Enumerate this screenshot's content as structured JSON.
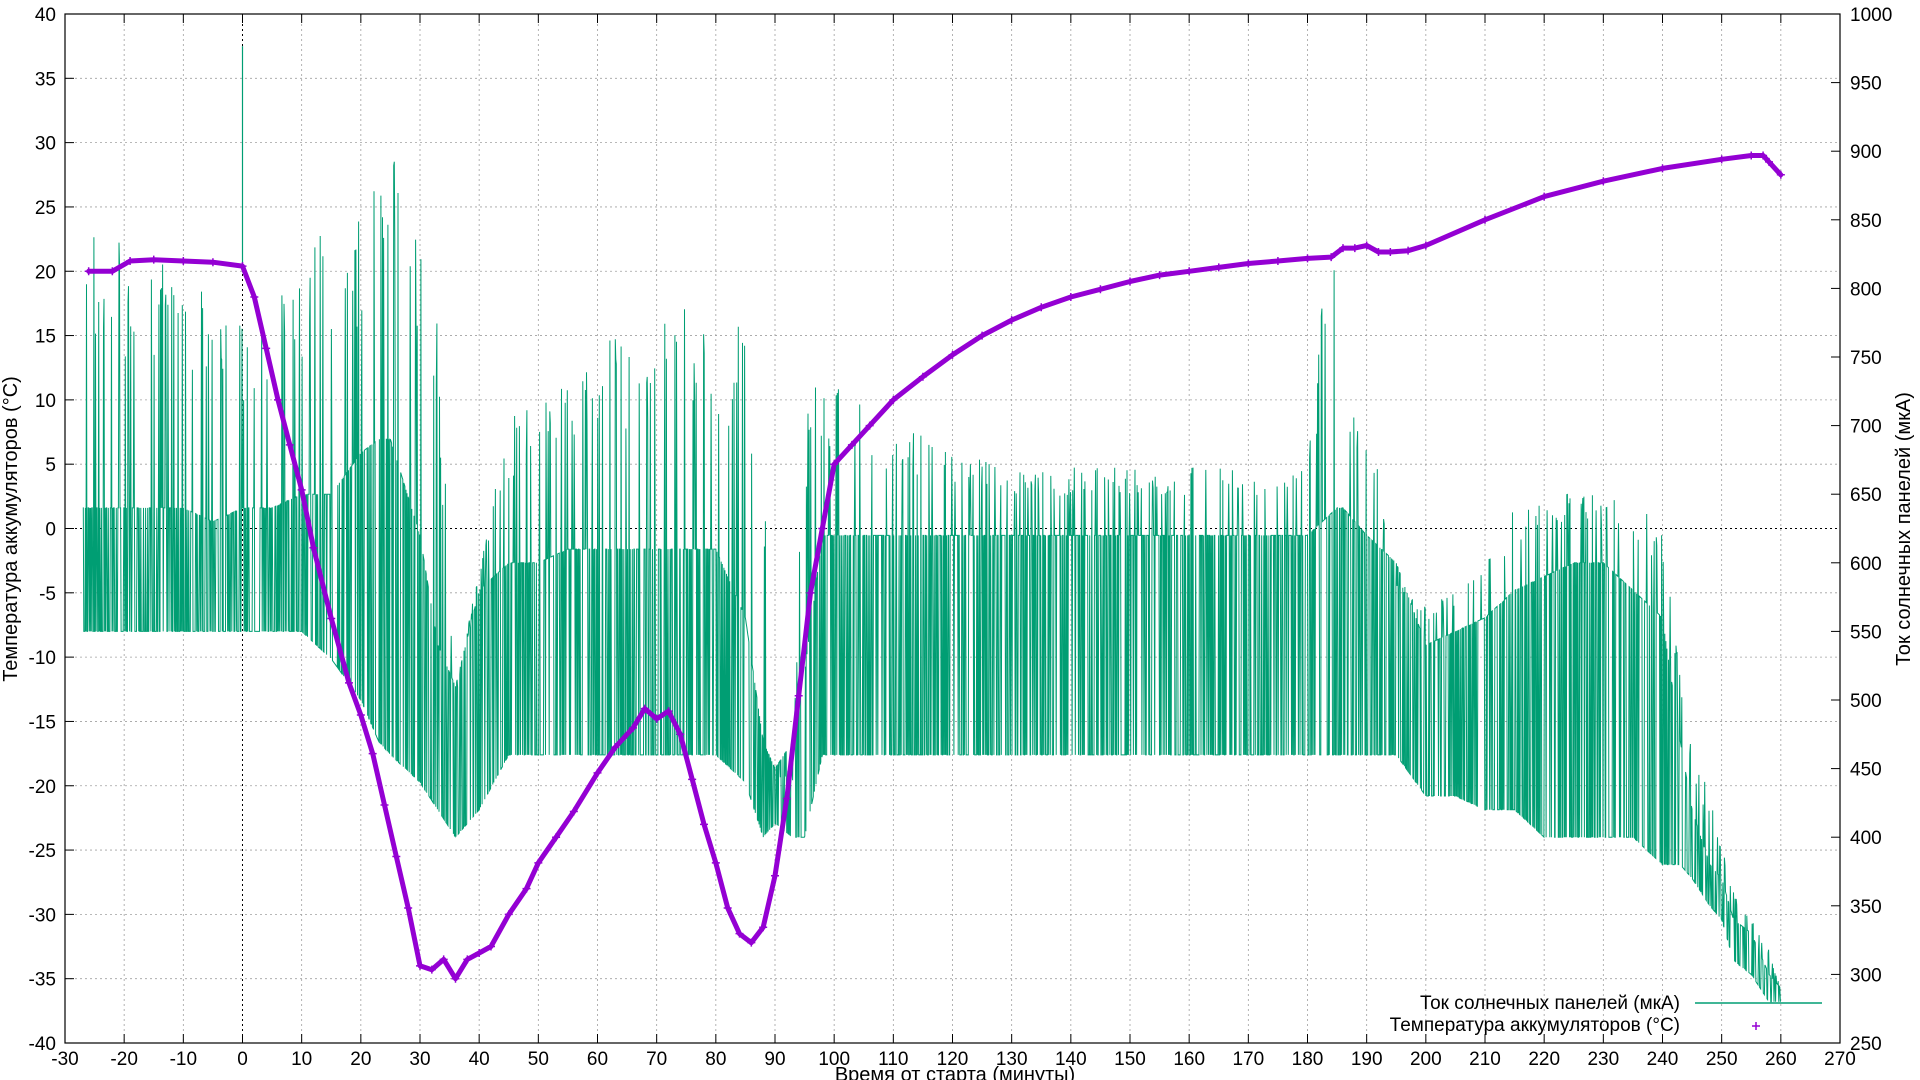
{
  "chart_data": {
    "type": "line",
    "xlabel": "Время от старта (минуты)",
    "ylabel": "Температура аккумуляторов (°C)",
    "y2label": "Ток солнечных панелей (мкА)",
    "xlim": [
      -30,
      270
    ],
    "ylim": [
      -40,
      40
    ],
    "y2lim": [
      250,
      1000
    ],
    "xticks": [
      -30,
      -20,
      -10,
      0,
      10,
      20,
      30,
      40,
      50,
      60,
      70,
      80,
      90,
      100,
      110,
      120,
      130,
      140,
      150,
      160,
      170,
      180,
      190,
      200,
      210,
      220,
      230,
      240,
      250,
      260,
      270
    ],
    "yticks": [
      -40,
      -35,
      -30,
      -25,
      -20,
      -15,
      -10,
      -5,
      0,
      5,
      10,
      15,
      20,
      25,
      30,
      35,
      40
    ],
    "y2ticks": [
      250,
      300,
      350,
      400,
      450,
      500,
      550,
      600,
      650,
      700,
      750,
      800,
      850,
      900,
      950,
      1000
    ],
    "grid": true,
    "legend_position": "bottom-right",
    "colors": {
      "current": "#009e73",
      "temperature": "#9400d3",
      "grid": "#a0a0a0"
    },
    "series": [
      {
        "name": "Ток солнечных панелей (мкА)",
        "axis": "y2",
        "style": "line",
        "x": [
          -27,
          -20,
          -10,
          -5,
          0,
          5,
          10,
          15,
          20,
          23,
          25,
          30,
          33,
          36,
          40,
          45,
          50,
          55,
          60,
          65,
          70,
          75,
          80,
          85,
          88,
          90,
          93,
          95,
          98,
          100,
          105,
          110,
          115,
          120,
          130,
          140,
          150,
          160,
          170,
          180,
          185,
          186,
          190,
          195,
          200,
          205,
          210,
          215,
          220,
          225,
          230,
          235,
          240,
          243,
          245,
          248,
          250,
          252,
          255,
          258,
          260
        ],
        "low": [
          550,
          550,
          550,
          550,
          550,
          550,
          550,
          530,
          500,
          470,
          460,
          440,
          420,
          400,
          420,
          460,
          460,
          460,
          460,
          460,
          460,
          460,
          460,
          440,
          400,
          410,
          400,
          400,
          460,
          460,
          460,
          460,
          460,
          460,
          460,
          460,
          460,
          460,
          460,
          460,
          460,
          460,
          460,
          460,
          430,
          430,
          420,
          420,
          400,
          400,
          400,
          400,
          380,
          380,
          370,
          350,
          340,
          310,
          300,
          280,
          280
        ],
        "mid": [
          640,
          640,
          640,
          630,
          640,
          640,
          650,
          650,
          680,
          690,
          690,
          620,
          540,
          510,
          580,
          600,
          600,
          610,
          610,
          610,
          610,
          610,
          610,
          560,
          470,
          450,
          470,
          520,
          620,
          620,
          620,
          620,
          620,
          620,
          620,
          620,
          620,
          620,
          620,
          620,
          640,
          640,
          620,
          600,
          540,
          550,
          560,
          580,
          590,
          600,
          600,
          580,
          560,
          470,
          420,
          380,
          370,
          340,
          330,
          300,
          290
        ],
        "high": [
          840,
          840,
          820,
          790,
          780,
          800,
          830,
          850,
          850,
          940,
          940,
          850,
          780,
          500,
          600,
          700,
          740,
          750,
          760,
          770,
          790,
          790,
          790,
          770,
          680,
          440,
          440,
          740,
          740,
          730,
          720,
          700,
          700,
          680,
          670,
          670,
          670,
          670,
          670,
          670,
          910,
          700,
          720,
          580,
          570,
          580,
          600,
          640,
          650,
          650,
          650,
          650,
          620,
          520,
          470,
          430,
          400,
          360,
          340,
          320,
          290
        ]
      },
      {
        "name": "Температура аккумуляторов (°C)",
        "axis": "y",
        "style": "points",
        "x": [
          -26,
          -22,
          -19,
          -15,
          -10,
          -5,
          0,
          2,
          4,
          6,
          8,
          10,
          12,
          15,
          18,
          20,
          22,
          24,
          26,
          28,
          30,
          32,
          34,
          36,
          38,
          40,
          42,
          45,
          48,
          50,
          53,
          56,
          60,
          63,
          66,
          68,
          70,
          72,
          74,
          76,
          78,
          80,
          82,
          84,
          86,
          88,
          90,
          92,
          94,
          96,
          98,
          100,
          103,
          106,
          110,
          115,
          120,
          125,
          130,
          135,
          140,
          145,
          150,
          155,
          160,
          165,
          170,
          175,
          180,
          184,
          186,
          188,
          190,
          192,
          194,
          197,
          200,
          210,
          220,
          230,
          240,
          250,
          255,
          257,
          258,
          260
        ],
        "y": [
          20.0,
          20.0,
          20.8,
          20.9,
          20.8,
          20.7,
          20.4,
          18.0,
          14.0,
          10.0,
          6.5,
          3.0,
          -1.5,
          -7.0,
          -12.0,
          -14.5,
          -17.5,
          -21.5,
          -25.5,
          -29.5,
          -34.0,
          -34.3,
          -33.5,
          -35.0,
          -33.5,
          -33.0,
          -32.5,
          -30.0,
          -28.0,
          -26.0,
          -24.0,
          -22.0,
          -19.0,
          -17.0,
          -15.5,
          -14.0,
          -14.8,
          -14.2,
          -16.0,
          -19.5,
          -23.0,
          -26.0,
          -29.5,
          -31.5,
          -32.2,
          -31.0,
          -27.0,
          -21.0,
          -13.0,
          -5.0,
          0.0,
          5.0,
          6.5,
          8.0,
          10.0,
          11.8,
          13.5,
          15.0,
          16.2,
          17.2,
          18.0,
          18.6,
          19.2,
          19.7,
          20.0,
          20.3,
          20.6,
          20.8,
          21.0,
          21.1,
          21.8,
          21.8,
          22.0,
          21.5,
          21.5,
          21.6,
          22.0,
          24.0,
          25.8,
          27.0,
          28.0,
          28.7,
          29.0,
          29.0,
          28.5,
          27.5
        ]
      }
    ]
  }
}
